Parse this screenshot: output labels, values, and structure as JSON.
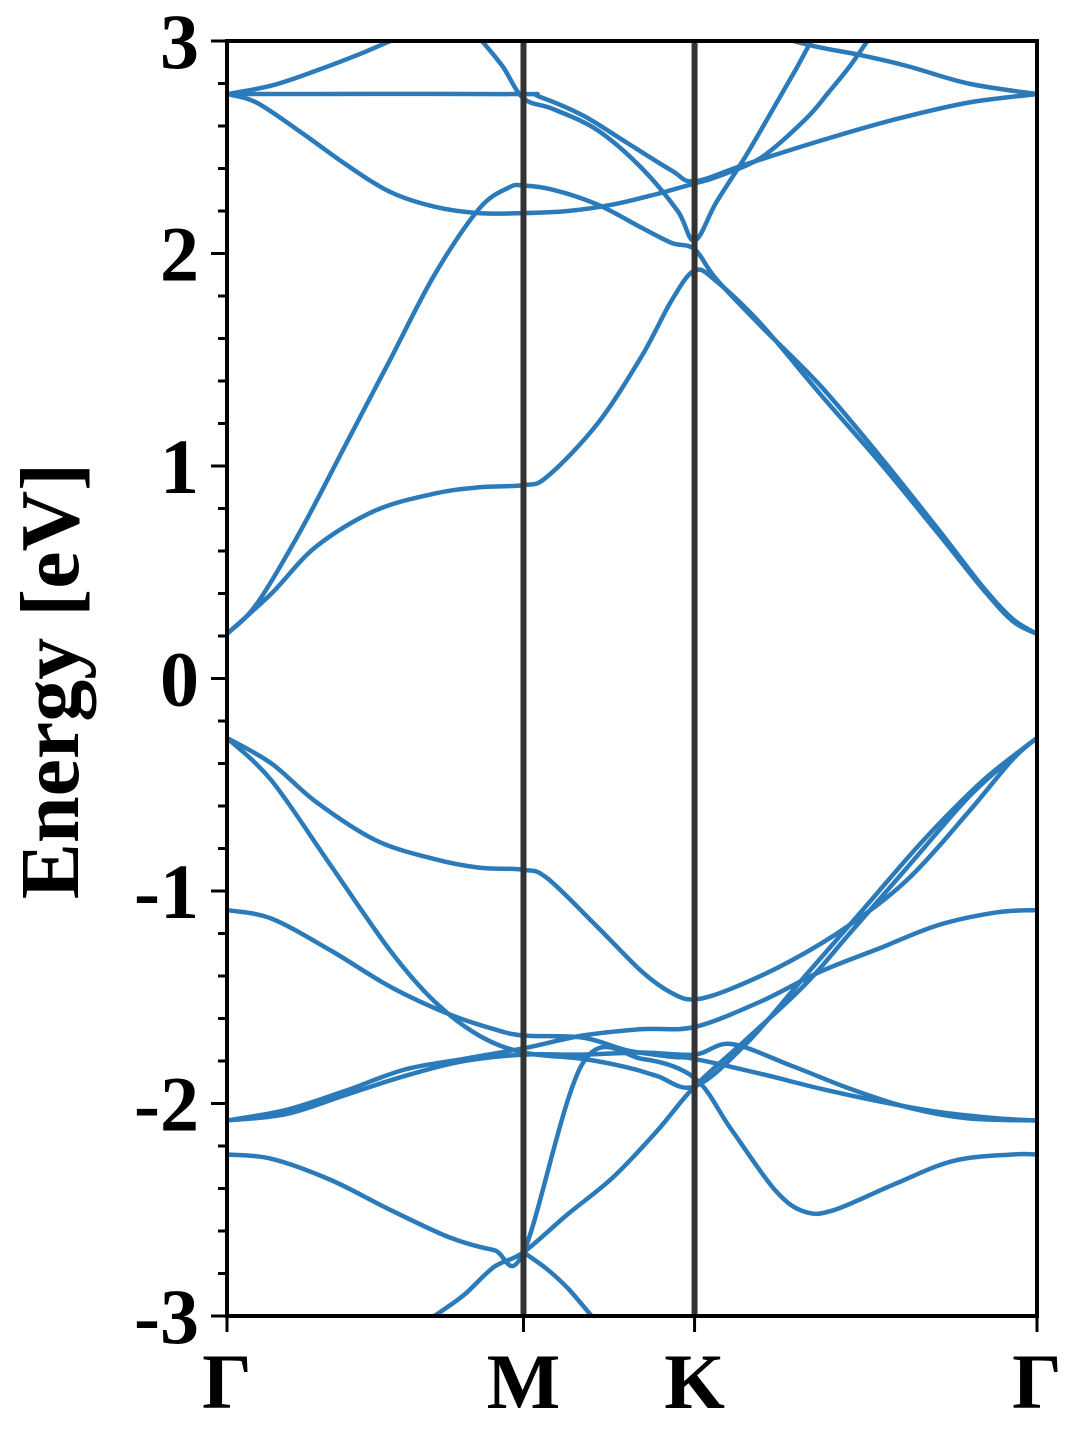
{
  "chart_data": {
    "type": "line",
    "title": "",
    "xlabel": "",
    "ylabel": "Energy [eV]",
    "ylim": [
      -3,
      3
    ],
    "yticks": [
      "-3",
      "-2",
      "-1",
      "0",
      "1",
      "2",
      "3"
    ],
    "y_minor_step": 0.2,
    "grid": false,
    "legend": "none",
    "k_points": [
      {
        "label": "Γ",
        "k": 0.0
      },
      {
        "label": "M",
        "k": 1.0
      },
      {
        "label": "K",
        "k": 1.577
      },
      {
        "label": "Γ",
        "k": 2.732
      }
    ],
    "xlim": [
      0,
      2.732
    ],
    "colors": {
      "band": "#2b7bba",
      "symmetry_line": "#333333",
      "frame": "#000000"
    },
    "series": [
      {
        "values": [
          [
            0,
            2.75
          ],
          [
            0.15,
            2.79
          ],
          [
            0.3,
            2.86
          ],
          [
            0.45,
            2.94
          ],
          [
            0.55,
            3.0
          ]
        ]
      },
      {
        "values": [
          [
            0,
            2.75
          ],
          [
            0.5,
            2.751
          ],
          [
            1.0,
            2.75
          ],
          [
            1.05,
            2.74
          ],
          [
            1.2,
            2.65
          ],
          [
            1.35,
            2.52
          ],
          [
            1.5,
            2.39
          ],
          [
            1.577,
            2.34
          ],
          [
            1.75,
            2.42
          ],
          [
            2.0,
            2.53
          ],
          [
            2.25,
            2.63
          ],
          [
            2.5,
            2.71
          ],
          [
            2.732,
            2.75
          ]
        ]
      },
      {
        "values": [
          [
            0,
            2.75
          ],
          [
            0.1,
            2.71
          ],
          [
            0.25,
            2.57
          ],
          [
            0.4,
            2.42
          ],
          [
            0.55,
            2.29
          ],
          [
            0.7,
            2.22
          ],
          [
            0.85,
            2.19
          ],
          [
            1.0,
            2.19
          ],
          [
            1.15,
            2.2
          ],
          [
            1.3,
            2.23
          ],
          [
            1.45,
            2.28
          ],
          [
            1.577,
            2.33
          ],
          [
            1.65,
            2.36
          ],
          [
            1.8,
            2.45
          ],
          [
            1.95,
            2.63
          ],
          [
            2.03,
            2.76
          ],
          [
            2.1,
            2.88
          ],
          [
            2.16,
            3.0
          ]
        ]
      },
      {
        "values": [
          [
            0.86,
            3.0
          ],
          [
            0.93,
            2.88
          ],
          [
            1.0,
            2.73
          ],
          [
            1.1,
            2.68
          ],
          [
            1.25,
            2.58
          ],
          [
            1.4,
            2.4
          ],
          [
            1.52,
            2.2
          ],
          [
            1.577,
            2.06
          ],
          [
            1.65,
            2.24
          ],
          [
            1.75,
            2.46
          ],
          [
            1.85,
            2.7
          ],
          [
            1.92,
            2.87
          ],
          [
            1.97,
            3.0
          ]
        ]
      },
      {
        "values": [
          [
            1.91,
            3.0
          ],
          [
            2.0,
            2.97
          ],
          [
            2.15,
            2.93
          ],
          [
            2.3,
            2.88
          ],
          [
            2.5,
            2.8
          ],
          [
            2.732,
            2.75
          ]
        ]
      },
      {
        "values": [
          [
            0,
            0.21
          ],
          [
            0.1,
            0.35
          ],
          [
            0.25,
            0.7
          ],
          [
            0.4,
            1.1
          ],
          [
            0.55,
            1.5
          ],
          [
            0.7,
            1.9
          ],
          [
            0.85,
            2.21
          ],
          [
            0.95,
            2.31
          ],
          [
            1.0,
            2.32
          ],
          [
            1.1,
            2.3
          ],
          [
            1.25,
            2.23
          ],
          [
            1.4,
            2.12
          ],
          [
            1.5,
            2.05
          ],
          [
            1.577,
            2.02
          ],
          [
            1.65,
            1.88
          ],
          [
            1.8,
            1.66
          ],
          [
            2.0,
            1.38
          ],
          [
            2.2,
            1.05
          ],
          [
            2.4,
            0.7
          ],
          [
            2.55,
            0.43
          ],
          [
            2.65,
            0.28
          ],
          [
            2.732,
            0.21
          ]
        ]
      },
      {
        "values": [
          [
            0,
            0.21
          ],
          [
            0.15,
            0.4
          ],
          [
            0.3,
            0.62
          ],
          [
            0.5,
            0.79
          ],
          [
            0.7,
            0.87
          ],
          [
            0.85,
            0.9
          ],
          [
            1.0,
            0.91
          ],
          [
            1.08,
            0.95
          ],
          [
            1.25,
            1.2
          ],
          [
            1.4,
            1.52
          ],
          [
            1.5,
            1.78
          ],
          [
            1.577,
            1.92
          ],
          [
            1.65,
            1.87
          ],
          [
            1.8,
            1.67
          ],
          [
            2.0,
            1.34
          ],
          [
            2.2,
            1.02
          ],
          [
            2.4,
            0.68
          ],
          [
            2.55,
            0.42
          ],
          [
            2.65,
            0.27
          ],
          [
            2.732,
            0.21
          ]
        ]
      },
      {
        "values": [
          [
            0,
            -0.28
          ],
          [
            0.15,
            -0.4
          ],
          [
            0.3,
            -0.58
          ],
          [
            0.5,
            -0.76
          ],
          [
            0.7,
            -0.85
          ],
          [
            0.85,
            -0.89
          ],
          [
            1.0,
            -0.9
          ],
          [
            1.08,
            -0.94
          ],
          [
            1.25,
            -1.17
          ],
          [
            1.4,
            -1.38
          ],
          [
            1.5,
            -1.48
          ],
          [
            1.577,
            -1.51
          ],
          [
            1.7,
            -1.46
          ],
          [
            1.9,
            -1.33
          ],
          [
            2.1,
            -1.16
          ],
          [
            2.3,
            -0.94
          ],
          [
            2.5,
            -0.63
          ],
          [
            2.65,
            -0.38
          ],
          [
            2.732,
            -0.28
          ]
        ]
      },
      {
        "values": [
          [
            0,
            -0.28
          ],
          [
            0.15,
            -0.48
          ],
          [
            0.35,
            -0.88
          ],
          [
            0.55,
            -1.28
          ],
          [
            0.7,
            -1.52
          ],
          [
            0.85,
            -1.68
          ],
          [
            1.0,
            -1.76
          ],
          [
            1.2,
            -1.79
          ],
          [
            1.35,
            -1.83
          ],
          [
            1.45,
            -1.87
          ],
          [
            1.577,
            -1.92
          ],
          [
            1.75,
            -1.72
          ],
          [
            1.95,
            -1.4
          ],
          [
            2.15,
            -1.08
          ],
          [
            2.35,
            -0.76
          ],
          [
            2.55,
            -0.48
          ],
          [
            2.732,
            -0.28
          ]
        ]
      },
      {
        "values": [
          [
            0,
            -1.09
          ],
          [
            0.15,
            -1.13
          ],
          [
            0.35,
            -1.28
          ],
          [
            0.55,
            -1.45
          ],
          [
            0.75,
            -1.58
          ],
          [
            0.9,
            -1.65
          ],
          [
            1.0,
            -1.68
          ],
          [
            1.2,
            -1.69
          ],
          [
            1.35,
            -1.75
          ],
          [
            1.5,
            -1.78
          ],
          [
            1.577,
            -1.79
          ],
          [
            1.8,
            -1.86
          ],
          [
            2.0,
            -1.93
          ],
          [
            2.2,
            -1.99
          ],
          [
            2.4,
            -2.04
          ],
          [
            2.6,
            -2.07
          ],
          [
            2.732,
            -2.08
          ]
        ]
      },
      {
        "values": [
          [
            0,
            -2.08
          ],
          [
            0.2,
            -2.05
          ],
          [
            0.4,
            -1.96
          ],
          [
            0.6,
            -1.87
          ],
          [
            0.8,
            -1.8
          ],
          [
            1.0,
            -1.77
          ],
          [
            1.2,
            -1.77
          ],
          [
            1.4,
            -1.76
          ],
          [
            1.577,
            -1.77
          ],
          [
            1.7,
            -1.72
          ],
          [
            1.9,
            -1.82
          ],
          [
            2.1,
            -1.93
          ],
          [
            2.3,
            -2.02
          ],
          [
            2.5,
            -2.07
          ],
          [
            2.732,
            -2.08
          ]
        ]
      },
      {
        "values": [
          [
            0,
            -2.08
          ],
          [
            0.2,
            -2.03
          ],
          [
            0.4,
            -1.94
          ],
          [
            0.6,
            -1.84
          ],
          [
            0.8,
            -1.79
          ],
          [
            1.0,
            -1.74
          ],
          [
            1.2,
            -1.68
          ],
          [
            1.4,
            -1.65
          ],
          [
            1.577,
            -1.64
          ],
          [
            1.8,
            -1.52
          ],
          [
            2.0,
            -1.38
          ],
          [
            2.2,
            -1.27
          ],
          [
            2.4,
            -1.16
          ],
          [
            2.6,
            -1.1
          ],
          [
            2.732,
            -1.09
          ]
        ]
      },
      {
        "values": [
          [
            0,
            -2.24
          ],
          [
            0.15,
            -2.26
          ],
          [
            0.35,
            -2.36
          ],
          [
            0.55,
            -2.5
          ],
          [
            0.75,
            -2.63
          ],
          [
            0.9,
            -2.69
          ],
          [
            1.0,
            -2.7
          ],
          [
            1.2,
            -1.81
          ],
          [
            1.4,
            -1.79
          ],
          [
            1.577,
            -1.88
          ],
          [
            1.7,
            -2.12
          ],
          [
            1.85,
            -2.41
          ],
          [
            1.95,
            -2.51
          ],
          [
            2.05,
            -2.5
          ],
          [
            2.25,
            -2.38
          ],
          [
            2.45,
            -2.27
          ],
          [
            2.65,
            -2.24
          ],
          [
            2.732,
            -2.24
          ]
        ]
      },
      {
        "values": [
          [
            0.7,
            -3.0
          ],
          [
            0.8,
            -2.9
          ],
          [
            0.9,
            -2.77
          ],
          [
            1.0,
            -2.7
          ],
          [
            1.15,
            -2.52
          ],
          [
            1.3,
            -2.35
          ],
          [
            1.45,
            -2.13
          ],
          [
            1.577,
            -1.92
          ],
          [
            1.75,
            -1.7
          ],
          [
            1.95,
            -1.44
          ],
          [
            2.1,
            -1.2
          ],
          [
            2.3,
            -0.88
          ],
          [
            2.5,
            -0.56
          ],
          [
            2.65,
            -0.37
          ],
          [
            2.732,
            -0.28
          ]
        ]
      },
      {
        "values": [
          [
            1.0,
            -2.7
          ],
          [
            1.08,
            -2.78
          ],
          [
            1.15,
            -2.87
          ],
          [
            1.23,
            -3.0
          ]
        ]
      }
    ]
  }
}
